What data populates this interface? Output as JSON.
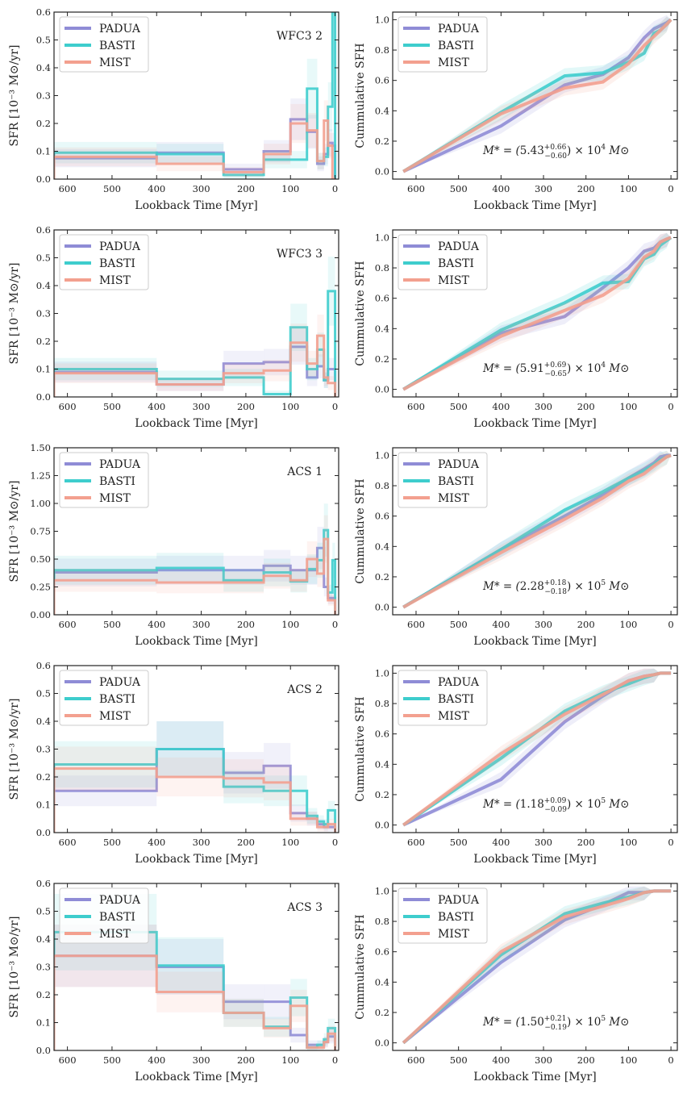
{
  "legend": [
    "PADUA",
    "BASTI",
    "MIST"
  ],
  "colors": {
    "PADUA": "#8f8cd6",
    "BASTI": "#3ecdcd",
    "MIST": "#f3a08f"
  },
  "chart_data": {
    "type": "line",
    "sfr_bin_edges_myr": [
      630,
      400,
      250,
      160,
      100,
      63,
      40,
      25,
      16,
      6,
      0
    ],
    "cum_x_myr": [
      630,
      400,
      250,
      160,
      100,
      63,
      40,
      25,
      10,
      0
    ],
    "panels": [
      {
        "label": "WFC3 2",
        "sfr_ylim": [
          0,
          0.6
        ],
        "sfr_yticks": [
          "0.0",
          "0.1",
          "0.2",
          "0.3",
          "0.4",
          "0.5",
          "0.6"
        ],
        "sfr": {
          "PADUA": [
            0.075,
            0.095,
            0.035,
            0.1,
            0.215,
            0.17,
            0.055,
            0.09,
            0.13,
            0.12
          ],
          "BASTI": [
            0.095,
            0.09,
            0.015,
            0.07,
            0.07,
            0.325,
            0.065,
            0.08,
            0.26,
            0.6
          ],
          "MIST": [
            0.08,
            0.055,
            0.025,
            0.09,
            0.2,
            0.175,
            0.065,
            0.21,
            0.12,
            0.0
          ]
        },
        "cum": {
          "PADUA": [
            0,
            0.3,
            0.57,
            0.64,
            0.75,
            0.88,
            0.94,
            0.96,
            0.98,
            1
          ],
          "BASTI": [
            0,
            0.39,
            0.63,
            0.65,
            0.72,
            0.78,
            0.91,
            0.93,
            0.97,
            1
          ],
          "MIST": [
            0,
            0.38,
            0.55,
            0.59,
            0.71,
            0.83,
            0.89,
            0.93,
            0.97,
            1
          ]
        },
        "mass": {
          "prefix": "M* = (",
          "value": "5.43",
          "up": "+0.66",
          "down": "−0.60",
          "mid": ") × 10",
          "exp": "4",
          "unit": " M⊙"
        }
      },
      {
        "label": "WFC3 3",
        "sfr_ylim": [
          0,
          0.6
        ],
        "sfr_yticks": [
          "0.0",
          "0.1",
          "0.2",
          "0.3",
          "0.4",
          "0.5",
          "0.6"
        ],
        "sfr": {
          "PADUA": [
            0.09,
            0.045,
            0.12,
            0.125,
            0.18,
            0.07,
            0.11,
            0.06,
            0.1,
            0.1
          ],
          "BASTI": [
            0.1,
            0.065,
            0.07,
            0.01,
            0.25,
            0.1,
            0.17,
            0.06,
            0.38,
            0.38
          ],
          "MIST": [
            0.085,
            0.045,
            0.085,
            0.095,
            0.195,
            0.12,
            0.22,
            0.07,
            0.05,
            0.05
          ]
        },
        "cum": {
          "PADUA": [
            0,
            0.37,
            0.48,
            0.67,
            0.8,
            0.91,
            0.93,
            0.97,
            0.99,
            1
          ],
          "BASTI": [
            0,
            0.39,
            0.57,
            0.7,
            0.71,
            0.86,
            0.89,
            0.95,
            0.98,
            1
          ],
          "MIST": [
            0,
            0.35,
            0.52,
            0.62,
            0.73,
            0.87,
            0.91,
            0.97,
            0.99,
            1
          ]
        },
        "mass": {
          "prefix": "M* = (",
          "value": "5.91",
          "up": "+0.69",
          "down": "−0.65",
          "mid": ") × 10",
          "exp": "4",
          "unit": " M⊙"
        }
      },
      {
        "label": "ACS 1",
        "sfr_ylim": [
          0,
          1.5
        ],
        "sfr_yticks": [
          "0.00",
          "0.25",
          "0.50",
          "0.75",
          "1.00",
          "1.25",
          "1.50"
        ],
        "sfr": {
          "PADUA": [
            0.38,
            0.4,
            0.4,
            0.44,
            0.4,
            0.4,
            0.6,
            0.25,
            0.15,
            0.15
          ],
          "BASTI": [
            0.4,
            0.42,
            0.31,
            0.38,
            0.3,
            0.41,
            0.49,
            0.76,
            0.2,
            0.49
          ],
          "MIST": [
            0.31,
            0.29,
            0.29,
            0.35,
            0.31,
            0.5,
            0.37,
            0.68,
            0.13,
            0.13
          ]
        },
        "cum": {
          "PADUA": [
            0,
            0.38,
            0.6,
            0.74,
            0.85,
            0.91,
            0.95,
            0.99,
            1,
            1
          ],
          "BASTI": [
            0,
            0.38,
            0.64,
            0.76,
            0.85,
            0.9,
            0.94,
            0.97,
            0.99,
            1
          ],
          "MIST": [
            0,
            0.36,
            0.58,
            0.72,
            0.83,
            0.88,
            0.93,
            0.96,
            0.99,
            1
          ]
        },
        "mass": {
          "prefix": "M* = (",
          "value": "2.28",
          "up": "+0.18",
          "down": "−0.18",
          "mid": ") × 10",
          "exp": "5",
          "unit": " M⊙"
        }
      },
      {
        "label": "ACS 2",
        "sfr_ylim": [
          0,
          0.6
        ],
        "sfr_yticks": [
          "0.0",
          "0.1",
          "0.2",
          "0.3",
          "0.4",
          "0.5",
          "0.6"
        ],
        "sfr": {
          "PADUA": [
            0.15,
            0.3,
            0.215,
            0.24,
            0.07,
            0.05,
            0.03,
            0.02,
            0.02,
            0.02
          ],
          "BASTI": [
            0.245,
            0.3,
            0.165,
            0.15,
            0.15,
            0.06,
            0.04,
            0.03,
            0.08,
            0.08
          ],
          "MIST": [
            0.23,
            0.2,
            0.195,
            0.18,
            0.05,
            0.05,
            0.02,
            0.02,
            0.03,
            0.03
          ]
        },
        "cum": {
          "PADUA": [
            0,
            0.3,
            0.68,
            0.85,
            0.95,
            0.98,
            0.99,
            1,
            1,
            1
          ],
          "BASTI": [
            0,
            0.44,
            0.75,
            0.87,
            0.93,
            0.97,
            0.99,
            1,
            1,
            1
          ],
          "MIST": [
            0,
            0.47,
            0.73,
            0.86,
            0.95,
            0.98,
            0.99,
            1,
            1,
            1
          ]
        },
        "mass": {
          "prefix": "M* = (",
          "value": "1.18",
          "up": "+0.09",
          "down": "−0.09",
          "mid": ") × 10",
          "exp": "5",
          "unit": " M⊙"
        }
      },
      {
        "label": "ACS 3",
        "sfr_ylim": [
          0,
          0.6
        ],
        "sfr_yticks": [
          "0.0",
          "0.1",
          "0.2",
          "0.3",
          "0.4",
          "0.5",
          "0.6"
        ],
        "sfr": {
          "PADUA": [
            0.34,
            0.3,
            0.175,
            0.175,
            0.055,
            0.02,
            0.02,
            0.03,
            0.05,
            0.05
          ],
          "BASTI": [
            0.425,
            0.305,
            0.135,
            0.085,
            0.19,
            0.01,
            0.02,
            0.04,
            0.08,
            0.08
          ],
          "MIST": [
            0.34,
            0.21,
            0.135,
            0.08,
            0.16,
            0.01,
            0.01,
            0.03,
            0.06,
            0.06
          ]
        },
        "cum": {
          "PADUA": [
            0,
            0.53,
            0.81,
            0.91,
            0.99,
            0.99,
            1,
            1,
            1,
            1
          ],
          "BASTI": [
            0,
            0.58,
            0.85,
            0.92,
            0.96,
            0.99,
            1,
            1,
            1,
            1
          ],
          "MIST": [
            0,
            0.6,
            0.83,
            0.9,
            0.95,
            0.99,
            1,
            1,
            1,
            1
          ]
        },
        "mass": {
          "prefix": "M* = (",
          "value": "1.50",
          "up": "+0.21",
          "down": "−0.19",
          "mid": ") × 10",
          "exp": "5",
          "unit": " M⊙"
        }
      }
    ],
    "xticks": [
      "600",
      "500",
      "400",
      "300",
      "200",
      "100",
      "0"
    ],
    "cum_yticks": [
      "0.0",
      "0.2",
      "0.4",
      "0.6",
      "0.8",
      "1.0"
    ],
    "xlabel": "Lookback Time [Myr]",
    "ylabel_sfr": "SFR [10⁻³ M⊙/yr]",
    "ylabel_cum": "Cummulative SFH",
    "legend_placement": "top-left"
  }
}
